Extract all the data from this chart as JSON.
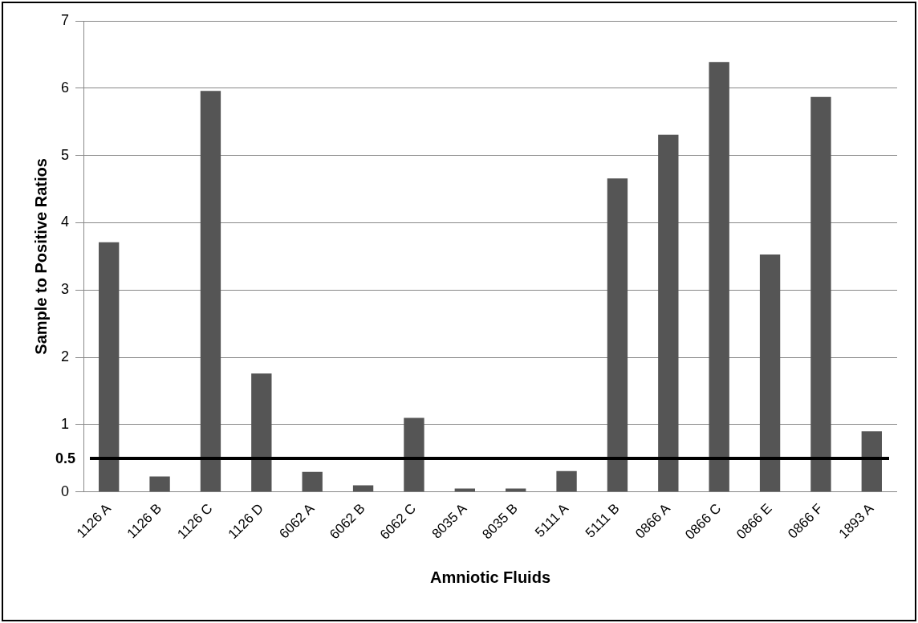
{
  "chart_data": {
    "type": "bar",
    "xlabel": "Amniotic Fluids",
    "ylabel": "Sample to Positive Ratios",
    "categories": [
      "1126 A",
      "1126 B",
      "1126 C",
      "1126 D",
      "6062 A",
      "6062 B",
      "6062 C",
      "8035 A",
      "8035 B",
      "5111 A",
      "5111 B",
      "0866 A",
      "0866 C",
      "0866 E",
      "0866 F",
      "1893 A"
    ],
    "values": [
      3.71,
      0.23,
      5.96,
      1.76,
      0.3,
      0.1,
      1.1,
      0.05,
      0.05,
      0.31,
      4.66,
      5.31,
      6.39,
      3.53,
      5.87,
      0.9
    ],
    "color": "#555555",
    "ylim": [
      0,
      7
    ],
    "yticks": [
      0,
      1,
      2,
      3,
      4,
      5,
      6,
      7
    ],
    "grid": "y",
    "legend": false,
    "ref_lines": [
      {
        "axis": "y",
        "value": 0.5,
        "label": "0.5",
        "color": "#000000"
      }
    ]
  }
}
